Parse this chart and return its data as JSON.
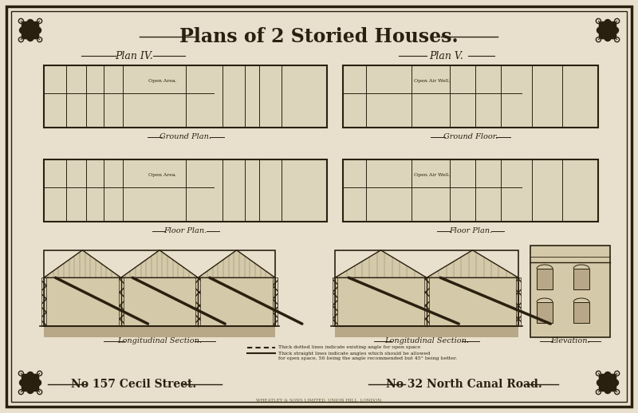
{
  "bg_color": "#e8e0cc",
  "title": "Plans of 2 Storied Houses.",
  "plan4_label": "Plan IV.",
  "plan5_label": "Plan V.",
  "ground_plan_label": "Ground Plan.",
  "ground_floor_label": "Ground Floor.",
  "floor_plan_label1": "Floor Plan.",
  "floor_plan_label2": "Floor Plan.",
  "long_section_label1": "Longitudinal Section.",
  "long_section_label2": "Longitudinal Section.",
  "elevation_label": "Elevation.",
  "no157_label": "No 157 Cecil Street.",
  "no32_label": "No 32 North Canal Road.",
  "legend_line1": "Thick dotted lines indicate existing angle for open space",
  "legend_line2": "Thick straight lines indicate angles which should be allowed",
  "legend_line3": "for open space, 56 being the angle recommended but 45° being better.",
  "printer_text": "WHEATLEY & SONS LIMITED, UNION HILL, LONDON.",
  "line_color": "#2a2010",
  "text_color": "#2a2010",
  "plan_bg": "#ddd5bb",
  "section_bg": "#d4c9a8",
  "ground_color": "#b8a888"
}
